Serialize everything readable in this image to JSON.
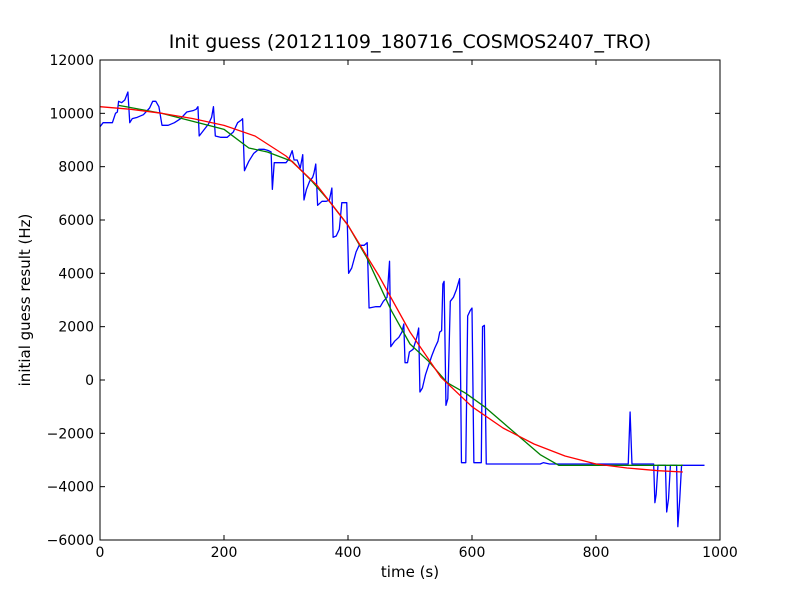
{
  "chart_data": {
    "type": "line",
    "title": "Init guess (20121109_180716_COSMOS2407_TRO)",
    "xlabel": "time (s)",
    "ylabel": "initial guess result (Hz)",
    "xlim": [
      0,
      1000
    ],
    "ylim": [
      -6000,
      12000
    ],
    "x_ticks": [
      0,
      200,
      400,
      600,
      800,
      1000
    ],
    "y_ticks": [
      -6000,
      -4000,
      -2000,
      0,
      2000,
      4000,
      6000,
      8000,
      10000,
      12000
    ],
    "grid": false,
    "legend": false,
    "series": [
      {
        "color": "#0000ff",
        "points": [
          [
            0,
            9500
          ],
          [
            5,
            9650
          ],
          [
            10,
            9650
          ],
          [
            20,
            9650
          ],
          [
            25,
            10000
          ],
          [
            28,
            10050
          ],
          [
            30,
            10450
          ],
          [
            35,
            10400
          ],
          [
            40,
            10500
          ],
          [
            45,
            10800
          ],
          [
            48,
            9650
          ],
          [
            52,
            9800
          ],
          [
            60,
            9850
          ],
          [
            70,
            9950
          ],
          [
            80,
            10200
          ],
          [
            85,
            10450
          ],
          [
            90,
            10450
          ],
          [
            95,
            10250
          ],
          [
            100,
            9550
          ],
          [
            110,
            9550
          ],
          [
            120,
            9650
          ],
          [
            130,
            9800
          ],
          [
            140,
            10050
          ],
          [
            150,
            10100
          ],
          [
            155,
            10150
          ],
          [
            158,
            10250
          ],
          [
            160,
            9150
          ],
          [
            165,
            9300
          ],
          [
            170,
            9450
          ],
          [
            175,
            9600
          ],
          [
            180,
            9850
          ],
          [
            183,
            10250
          ],
          [
            186,
            9150
          ],
          [
            195,
            9100
          ],
          [
            205,
            9100
          ],
          [
            215,
            9300
          ],
          [
            222,
            9650
          ],
          [
            228,
            9750
          ],
          [
            230,
            9800
          ],
          [
            233,
            7850
          ],
          [
            240,
            8200
          ],
          [
            248,
            8500
          ],
          [
            256,
            8650
          ],
          [
            265,
            8650
          ],
          [
            272,
            8600
          ],
          [
            276,
            8550
          ],
          [
            278,
            7150
          ],
          [
            281,
            8150
          ],
          [
            290,
            8150
          ],
          [
            300,
            8150
          ],
          [
            305,
            8300
          ],
          [
            310,
            8600
          ],
          [
            313,
            8250
          ],
          [
            318,
            8250
          ],
          [
            323,
            7950
          ],
          [
            327,
            8450
          ],
          [
            329,
            6750
          ],
          [
            333,
            7150
          ],
          [
            338,
            7450
          ],
          [
            343,
            7600
          ],
          [
            345,
            7750
          ],
          [
            348,
            8100
          ],
          [
            351,
            6550
          ],
          [
            358,
            6700
          ],
          [
            365,
            6700
          ],
          [
            370,
            6750
          ],
          [
            374,
            7200
          ],
          [
            376,
            5350
          ],
          [
            381,
            5400
          ],
          [
            386,
            5650
          ],
          [
            390,
            6650
          ],
          [
            395,
            6650
          ],
          [
            398,
            6650
          ],
          [
            401,
            4000
          ],
          [
            406,
            4200
          ],
          [
            413,
            4800
          ],
          [
            418,
            5050
          ],
          [
            426,
            5050
          ],
          [
            431,
            5150
          ],
          [
            434,
            2700
          ],
          [
            445,
            2750
          ],
          [
            452,
            2750
          ],
          [
            457,
            2950
          ],
          [
            463,
            3100
          ],
          [
            467,
            4450
          ],
          [
            469,
            1250
          ],
          [
            475,
            1450
          ],
          [
            482,
            1600
          ],
          [
            487,
            1800
          ],
          [
            490,
            2100
          ],
          [
            492,
            650
          ],
          [
            496,
            650
          ],
          [
            499,
            1050
          ],
          [
            505,
            1150
          ],
          [
            511,
            1600
          ],
          [
            514,
            1950
          ],
          [
            516,
            -450
          ],
          [
            520,
            -300
          ],
          [
            525,
            200
          ],
          [
            530,
            550
          ],
          [
            535,
            900
          ],
          [
            540,
            1200
          ],
          [
            545,
            1450
          ],
          [
            548,
            1800
          ],
          [
            551,
            1850
          ],
          [
            553,
            3600
          ],
          [
            555,
            3700
          ],
          [
            558,
            -950
          ],
          [
            561,
            -700
          ],
          [
            565,
            2950
          ],
          [
            570,
            3100
          ],
          [
            575,
            3400
          ],
          [
            580,
            3800
          ],
          [
            583,
            -3100
          ],
          [
            590,
            -3100
          ],
          [
            593,
            2400
          ],
          [
            597,
            2600
          ],
          [
            600,
            2700
          ],
          [
            603,
            -3100
          ],
          [
            615,
            -3100
          ],
          [
            617,
            2000
          ],
          [
            620,
            2050
          ],
          [
            623,
            -3150
          ],
          [
            640,
            -3150
          ],
          [
            650,
            -3150
          ],
          [
            660,
            -3150
          ],
          [
            680,
            -3150
          ],
          [
            700,
            -3150
          ],
          [
            710,
            -3150
          ],
          [
            715,
            -3100
          ],
          [
            725,
            -3150
          ],
          [
            740,
            -3150
          ],
          [
            760,
            -3150
          ],
          [
            780,
            -3150
          ],
          [
            800,
            -3150
          ],
          [
            820,
            -3150
          ],
          [
            850,
            -3150
          ],
          [
            852,
            -3150
          ],
          [
            855,
            -1200
          ],
          [
            858,
            -3150
          ],
          [
            870,
            -3150
          ],
          [
            880,
            -3150
          ],
          [
            890,
            -3150
          ],
          [
            893,
            -3150
          ],
          [
            895,
            -4600
          ],
          [
            897,
            -4300
          ],
          [
            900,
            -3200
          ],
          [
            908,
            -3200
          ],
          [
            910,
            -3200
          ],
          [
            912,
            -3200
          ],
          [
            914,
            -4950
          ],
          [
            917,
            -4450
          ],
          [
            920,
            -3200
          ],
          [
            925,
            -3200
          ],
          [
            930,
            -3200
          ],
          [
            932,
            -5500
          ],
          [
            935,
            -4500
          ],
          [
            938,
            -3200
          ],
          [
            950,
            -3200
          ],
          [
            975,
            -3200
          ]
        ]
      },
      {
        "color": "#008000",
        "points": [
          [
            30,
            10300
          ],
          [
            100,
            10000
          ],
          [
            150,
            9700
          ],
          [
            200,
            9400
          ],
          [
            240,
            8700
          ],
          [
            270,
            8550
          ],
          [
            310,
            8200
          ],
          [
            340,
            7500
          ],
          [
            370,
            6700
          ],
          [
            400,
            5800
          ],
          [
            430,
            4600
          ],
          [
            470,
            2600
          ],
          [
            500,
            1350
          ],
          [
            530,
            700
          ],
          [
            560,
            -100
          ],
          [
            590,
            -500
          ],
          [
            620,
            -1000
          ],
          [
            650,
            -1600
          ],
          [
            680,
            -2200
          ],
          [
            710,
            -2800
          ],
          [
            740,
            -3200
          ],
          [
            800,
            -3200
          ],
          [
            850,
            -3200
          ],
          [
            900,
            -3200
          ],
          [
            940,
            -3200
          ]
        ]
      },
      {
        "color": "#ff0000",
        "points": [
          [
            0,
            10250
          ],
          [
            50,
            10150
          ],
          [
            100,
            10000
          ],
          [
            150,
            9800
          ],
          [
            200,
            9550
          ],
          [
            250,
            9150
          ],
          [
            300,
            8400
          ],
          [
            350,
            7300
          ],
          [
            400,
            5800
          ],
          [
            450,
            3900
          ],
          [
            500,
            1800
          ],
          [
            550,
            100
          ],
          [
            600,
            -1000
          ],
          [
            650,
            -1800
          ],
          [
            700,
            -2400
          ],
          [
            750,
            -2850
          ],
          [
            800,
            -3150
          ],
          [
            850,
            -3300
          ],
          [
            900,
            -3400
          ],
          [
            940,
            -3450
          ]
        ]
      }
    ]
  }
}
